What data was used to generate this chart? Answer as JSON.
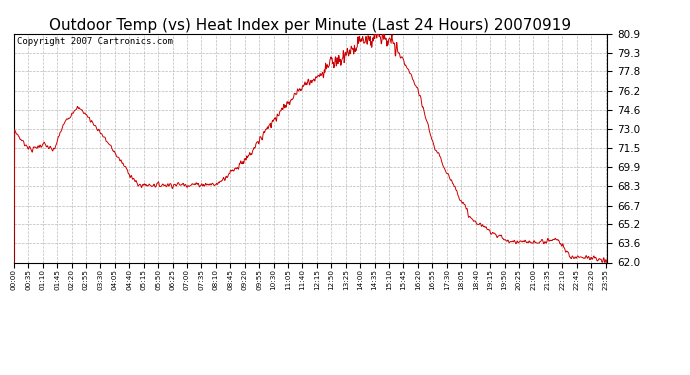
{
  "title": "Outdoor Temp (vs) Heat Index per Minute (Last 24 Hours) 20070919",
  "copyright": "Copyright 2007 Cartronics.com",
  "title_fontsize": 11,
  "background_color": "#ffffff",
  "plot_bg_color": "#ffffff",
  "grid_color": "#bbbbbb",
  "line_color": "#cc0000",
  "blue_color": "#0000cc",
  "y_min": 62.0,
  "y_max": 80.9,
  "y_ticks": [
    62.0,
    63.6,
    65.2,
    66.7,
    68.3,
    69.9,
    71.5,
    73.0,
    74.6,
    76.2,
    77.8,
    79.3,
    80.9
  ]
}
